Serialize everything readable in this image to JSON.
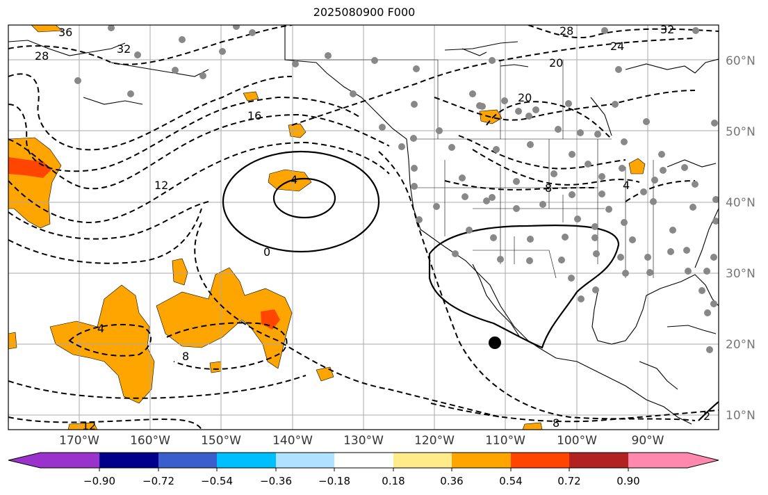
{
  "title": "2025080900 F000",
  "lon_labels": [
    "170°W",
    "160°W",
    "150°W",
    "140°W",
    "130°W",
    "120°W",
    "110°W",
    "100°W",
    "90°W"
  ],
  "lat_labels": [
    "60°N",
    "50°N",
    "40°N",
    "30°N",
    "20°N",
    "10°N"
  ],
  "colorbar": {
    "ticks": [
      "−0.90",
      "−0.72",
      "−0.54",
      "−0.36",
      "−0.18",
      "0.18",
      "0.36",
      "0.54",
      "0.72",
      "0.90"
    ],
    "colors": [
      "#9933cc",
      "#00008b",
      "#3a5fcd",
      "#00bfff",
      "#b0e2ff",
      "#ffffff",
      "#ffeb8a",
      "#ffa500",
      "#ff4500",
      "#b22222",
      "#ff89ae"
    ]
  },
  "contour_labels": [
    "36",
    "32",
    "28",
    "28",
    "24",
    "32",
    "20",
    "20",
    "16",
    "12",
    "8",
    "4",
    "4",
    "0",
    "4",
    "8",
    "12",
    "8",
    "2"
  ],
  "fill_colors": {
    "orange": "#ffa500",
    "red": "#ff4500",
    "yellow": "#ffeb8a"
  },
  "marker_color": "#888888"
}
